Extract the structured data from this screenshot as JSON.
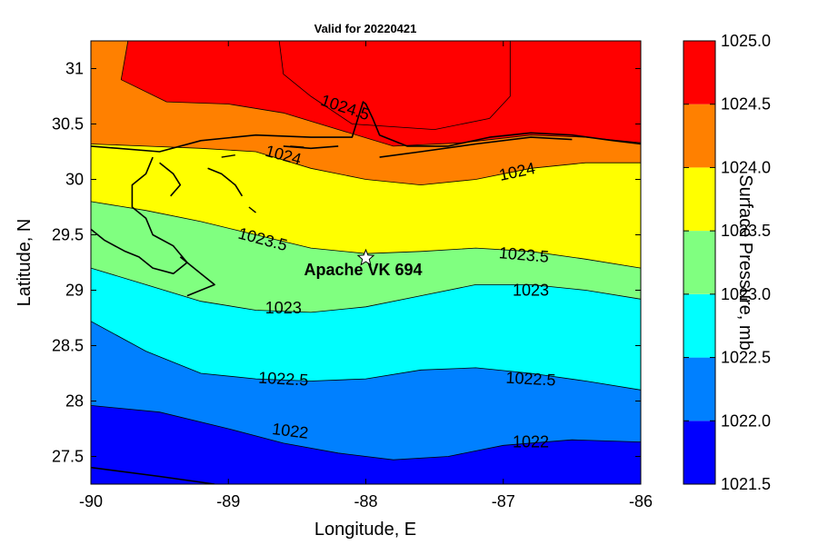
{
  "figure": {
    "title": "Valid for 20220421",
    "xlabel": "Longitude, E",
    "ylabel": "Latitude, N",
    "colorbar_label": "Surface Pressure, mb"
  },
  "chart_data": {
    "type": "filled-contour map",
    "xlim": [
      -90,
      -86
    ],
    "ylim": [
      27.25,
      31.25
    ],
    "x_ticks": [
      "-90",
      "-89",
      "-88",
      "-87",
      "-86"
    ],
    "y_ticks": [
      "27.5",
      "28",
      "28.5",
      "29",
      "29.5",
      "30",
      "30.5",
      "31"
    ],
    "x_tick_values": [
      -90,
      -89,
      -88,
      -87,
      -86
    ],
    "y_tick_values": [
      27.5,
      28,
      28.5,
      29,
      29.5,
      30,
      30.5,
      31
    ],
    "grid": false,
    "levels": [
      1021.5,
      1022,
      1022.5,
      1023,
      1023.5,
      1024,
      1024.5,
      1025
    ],
    "level_colors": [
      "#0000ff",
      "#0080ff",
      "#00ffff",
      "#80ff80",
      "#ffff00",
      "#ff8000",
      "#ff0000"
    ],
    "colorbar_ticks": [
      "1021.5",
      "1022.0",
      "1022.5",
      "1023.0",
      "1023.5",
      "1024.0",
      "1024.5",
      "1025.0"
    ],
    "contour_lines": [
      {
        "level": 1022,
        "points": [
          [
            -90,
            27.96
          ],
          [
            -89.5,
            27.9
          ],
          [
            -89,
            27.75
          ],
          [
            -88.6,
            27.62
          ],
          [
            -88.2,
            27.53
          ],
          [
            -87.8,
            27.47
          ],
          [
            -87.4,
            27.5
          ],
          [
            -87,
            27.6
          ],
          [
            -86.5,
            27.65
          ],
          [
            -86,
            27.63
          ]
        ]
      },
      {
        "level": 1022.5,
        "points": [
          [
            -90,
            28.72
          ],
          [
            -89.6,
            28.45
          ],
          [
            -89.2,
            28.25
          ],
          [
            -88.8,
            28.2
          ],
          [
            -88.4,
            28.18
          ],
          [
            -88,
            28.2
          ],
          [
            -87.6,
            28.28
          ],
          [
            -87.2,
            28.3
          ],
          [
            -86.8,
            28.25
          ],
          [
            -86.4,
            28.18
          ],
          [
            -86,
            28.1
          ]
        ]
      },
      {
        "level": 1023,
        "points": [
          [
            -90,
            29.2
          ],
          [
            -89.6,
            29.05
          ],
          [
            -89.2,
            28.9
          ],
          [
            -88.8,
            28.82
          ],
          [
            -88.4,
            28.8
          ],
          [
            -88,
            28.85
          ],
          [
            -87.6,
            28.95
          ],
          [
            -87.2,
            29.05
          ],
          [
            -86.8,
            29.05
          ],
          [
            -86.4,
            29
          ],
          [
            -86,
            28.92
          ]
        ]
      },
      {
        "level": 1023.5,
        "points": [
          [
            -90,
            29.8
          ],
          [
            -89.6,
            29.72
          ],
          [
            -89.2,
            29.62
          ],
          [
            -88.8,
            29.5
          ],
          [
            -88.4,
            29.38
          ],
          [
            -88,
            29.33
          ],
          [
            -87.6,
            29.35
          ],
          [
            -87.2,
            29.38
          ],
          [
            -86.8,
            29.35
          ],
          [
            -86.4,
            29.28
          ],
          [
            -86,
            29.2
          ]
        ]
      },
      {
        "level": 1024,
        "points": [
          [
            -90,
            30.32
          ],
          [
            -89.6,
            30.3
          ],
          [
            -89.2,
            30.28
          ],
          [
            -88.8,
            30.25
          ],
          [
            -88.4,
            30.1
          ],
          [
            -88,
            30
          ],
          [
            -87.6,
            29.95
          ],
          [
            -87.2,
            30
          ],
          [
            -86.8,
            30.1
          ],
          [
            -86.4,
            30.15
          ],
          [
            -86,
            30.15
          ]
        ]
      },
      {
        "level": 1024.5,
        "points": [
          [
            -89.73,
            31.25
          ],
          [
            -89.78,
            30.9
          ],
          [
            -89.45,
            30.7
          ],
          [
            -89,
            30.68
          ],
          [
            -88.6,
            30.6
          ],
          [
            -88.2,
            30.45
          ],
          [
            -87.8,
            30.3
          ],
          [
            -87.3,
            30.33
          ],
          [
            -86.8,
            30.4
          ],
          [
            -86.4,
            30.38
          ],
          [
            -86,
            30.33
          ]
        ]
      },
      {
        "level": 1025,
        "points": [
          [
            -88.63,
            31.25
          ],
          [
            -88.6,
            30.95
          ],
          [
            -88.4,
            30.75
          ],
          [
            -88.1,
            30.5
          ],
          [
            -87.5,
            30.45
          ],
          [
            -87.1,
            30.55
          ],
          [
            -86.95,
            30.75
          ],
          [
            -86.95,
            31.25
          ]
        ]
      }
    ],
    "contour_labels": [
      {
        "text": "1024.5",
        "lon": -88.15,
        "lat": 30.65,
        "angle": 18
      },
      {
        "text": "1024",
        "lon": -88.6,
        "lat": 30.22,
        "angle": 15
      },
      {
        "text": "1024",
        "lon": -86.9,
        "lat": 30.07,
        "angle": -12
      },
      {
        "text": "1023.5",
        "lon": -88.75,
        "lat": 29.46,
        "angle": 15
      },
      {
        "text": "1023.5",
        "lon": -86.85,
        "lat": 29.32,
        "angle": 5
      },
      {
        "text": "1023",
        "lon": -88.6,
        "lat": 28.84,
        "angle": 0
      },
      {
        "text": "1023",
        "lon": -86.8,
        "lat": 29.0,
        "angle": 0
      },
      {
        "text": "1022.5",
        "lon": -88.6,
        "lat": 28.2,
        "angle": 3
      },
      {
        "text": "1022.5",
        "lon": -86.8,
        "lat": 28.2,
        "angle": 3
      },
      {
        "text": "1022",
        "lon": -88.55,
        "lat": 27.73,
        "angle": 7
      },
      {
        "text": "1022",
        "lon": -86.8,
        "lat": 27.63,
        "angle": 0
      }
    ],
    "site": {
      "name": "Apache VK 694",
      "lon": -88.0,
      "lat": 29.29
    },
    "coastline": [
      [
        [
          -90,
          30.3
        ],
        [
          -89.5,
          30.25
        ],
        [
          -89.2,
          30.35
        ],
        [
          -88.8,
          30.4
        ],
        [
          -88.4,
          30.38
        ],
        [
          -88.1,
          30.38
        ],
        [
          -88.02,
          30.7
        ],
        [
          -88,
          30.68
        ],
        [
          -87.95,
          30.55
        ],
        [
          -87.9,
          30.4
        ],
        [
          -87.7,
          30.3
        ],
        [
          -87.4,
          30.3
        ],
        [
          -87.1,
          30.38
        ],
        [
          -86.8,
          30.42
        ],
        [
          -86.5,
          30.4
        ],
        [
          -86.2,
          30.35
        ],
        [
          -86,
          30.32
        ]
      ],
      [
        [
          -88.6,
          30.3
        ],
        [
          -88.4,
          30.28
        ],
        [
          -88.2,
          30.3
        ]
      ],
      [
        [
          -87.9,
          30.2
        ],
        [
          -87.6,
          30.25
        ],
        [
          -87.2,
          30.32
        ],
        [
          -86.8,
          30.38
        ],
        [
          -86.5,
          30.36
        ]
      ],
      [
        [
          -90,
          29.55
        ],
        [
          -89.9,
          29.45
        ],
        [
          -89.75,
          29.35
        ],
        [
          -89.65,
          29.3
        ],
        [
          -89.55,
          29.2
        ],
        [
          -89.4,
          29.15
        ],
        [
          -89.3,
          29.25
        ],
        [
          -89.4,
          29.4
        ],
        [
          -89.55,
          29.5
        ],
        [
          -89.6,
          29.65
        ],
        [
          -89.7,
          29.75
        ],
        [
          -89.7,
          29.95
        ],
        [
          -89.6,
          30.05
        ],
        [
          -89.55,
          30.2
        ]
      ],
      [
        [
          -89.35,
          29.3
        ],
        [
          -89.2,
          29.15
        ],
        [
          -89.1,
          29.05
        ],
        [
          -89.3,
          28.95
        ]
      ],
      [
        [
          -89.5,
          30.15
        ],
        [
          -89.4,
          30.05
        ],
        [
          -89.35,
          29.95
        ],
        [
          -89.42,
          29.85
        ]
      ],
      [
        [
          -89.15,
          30.1
        ],
        [
          -89.05,
          30.05
        ],
        [
          -88.95,
          29.95
        ],
        [
          -88.9,
          29.85
        ]
      ],
      [
        [
          -90,
          27.4
        ],
        [
          -89.5,
          27.32
        ],
        [
          -89.1,
          27.25
        ]
      ]
    ],
    "islands": [
      [
        [
          -89.05,
          30.2
        ],
        [
          -88.95,
          30.22
        ]
      ],
      [
        [
          -88.55,
          30.3
        ],
        [
          -88.45,
          30.29
        ]
      ],
      [
        [
          -88.85,
          29.75
        ],
        [
          -88.8,
          29.7
        ]
      ]
    ]
  }
}
